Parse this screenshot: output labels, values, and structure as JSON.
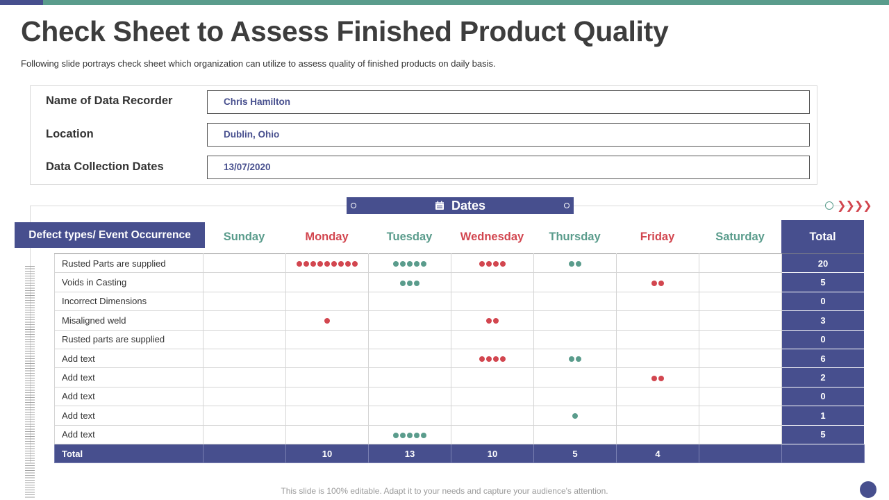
{
  "title": "Check Sheet to Assess Finished Product Quality",
  "subtitle": "Following slide portrays check sheet which organization can utilize to assess quality of finished products on daily basis.",
  "info": {
    "recorder_label": "Name of Data Recorder",
    "recorder_value": "Chris Hamilton",
    "location_label": "Location",
    "location_value": "Dublin, Ohio",
    "dates_label": "Data Collection Dates",
    "dates_value": "13/07/2020"
  },
  "banner": {
    "label": "Dates",
    "icon": "calendar-icon"
  },
  "table": {
    "defect_header": "Defect types/ Event Occurrence",
    "total_header": "Total",
    "days": [
      {
        "label": "Sunday",
        "color": "#5a9c8c"
      },
      {
        "label": "Monday",
        "color": "#d2464f"
      },
      {
        "label": "Tuesday",
        "color": "#5a9c8c"
      },
      {
        "label": "Wednesday",
        "color": "#d2464f"
      },
      {
        "label": "Thursday",
        "color": "#5a9c8c"
      },
      {
        "label": "Friday",
        "color": "#d2464f"
      },
      {
        "label": "Saturday",
        "color": "#5a9c8c"
      }
    ],
    "rows": [
      {
        "label": "Rusted Parts are supplied",
        "counts": [
          0,
          9,
          5,
          4,
          2,
          0,
          0
        ],
        "total": "20"
      },
      {
        "label": "Voids in Casting",
        "counts": [
          0,
          0,
          3,
          0,
          0,
          2,
          0
        ],
        "total": "5"
      },
      {
        "label": "Incorrect Dimensions",
        "counts": [
          0,
          0,
          0,
          0,
          0,
          0,
          0
        ],
        "total": "0"
      },
      {
        "label": "Misaligned weld",
        "counts": [
          0,
          1,
          0,
          2,
          0,
          0,
          0
        ],
        "total": "3"
      },
      {
        "label": "Rusted parts are supplied",
        "counts": [
          0,
          0,
          0,
          0,
          0,
          0,
          0
        ],
        "total": "0"
      },
      {
        "label": "Add text",
        "counts": [
          0,
          0,
          0,
          4,
          2,
          0,
          0
        ],
        "total": "6"
      },
      {
        "label": "Add text",
        "counts": [
          0,
          0,
          0,
          0,
          0,
          2,
          0
        ],
        "total": "2"
      },
      {
        "label": "Add text",
        "counts": [
          0,
          0,
          0,
          0,
          0,
          0,
          0
        ],
        "total": "0"
      },
      {
        "label": "Add text",
        "counts": [
          0,
          0,
          0,
          0,
          1,
          0,
          0
        ],
        "total": "1"
      },
      {
        "label": "Add text",
        "counts": [
          0,
          0,
          5,
          0,
          0,
          0,
          0
        ],
        "total": "5"
      }
    ],
    "total_row": {
      "label": "Total",
      "values": [
        "",
        "10",
        "13",
        "10",
        "5",
        "4",
        ""
      ]
    }
  },
  "colors": {
    "navy": "#474f8e",
    "teal": "#5a9c8c",
    "red": "#d2464f"
  },
  "footer": "This slide is 100% editable. Adapt it to your needs and capture your audience's attention."
}
